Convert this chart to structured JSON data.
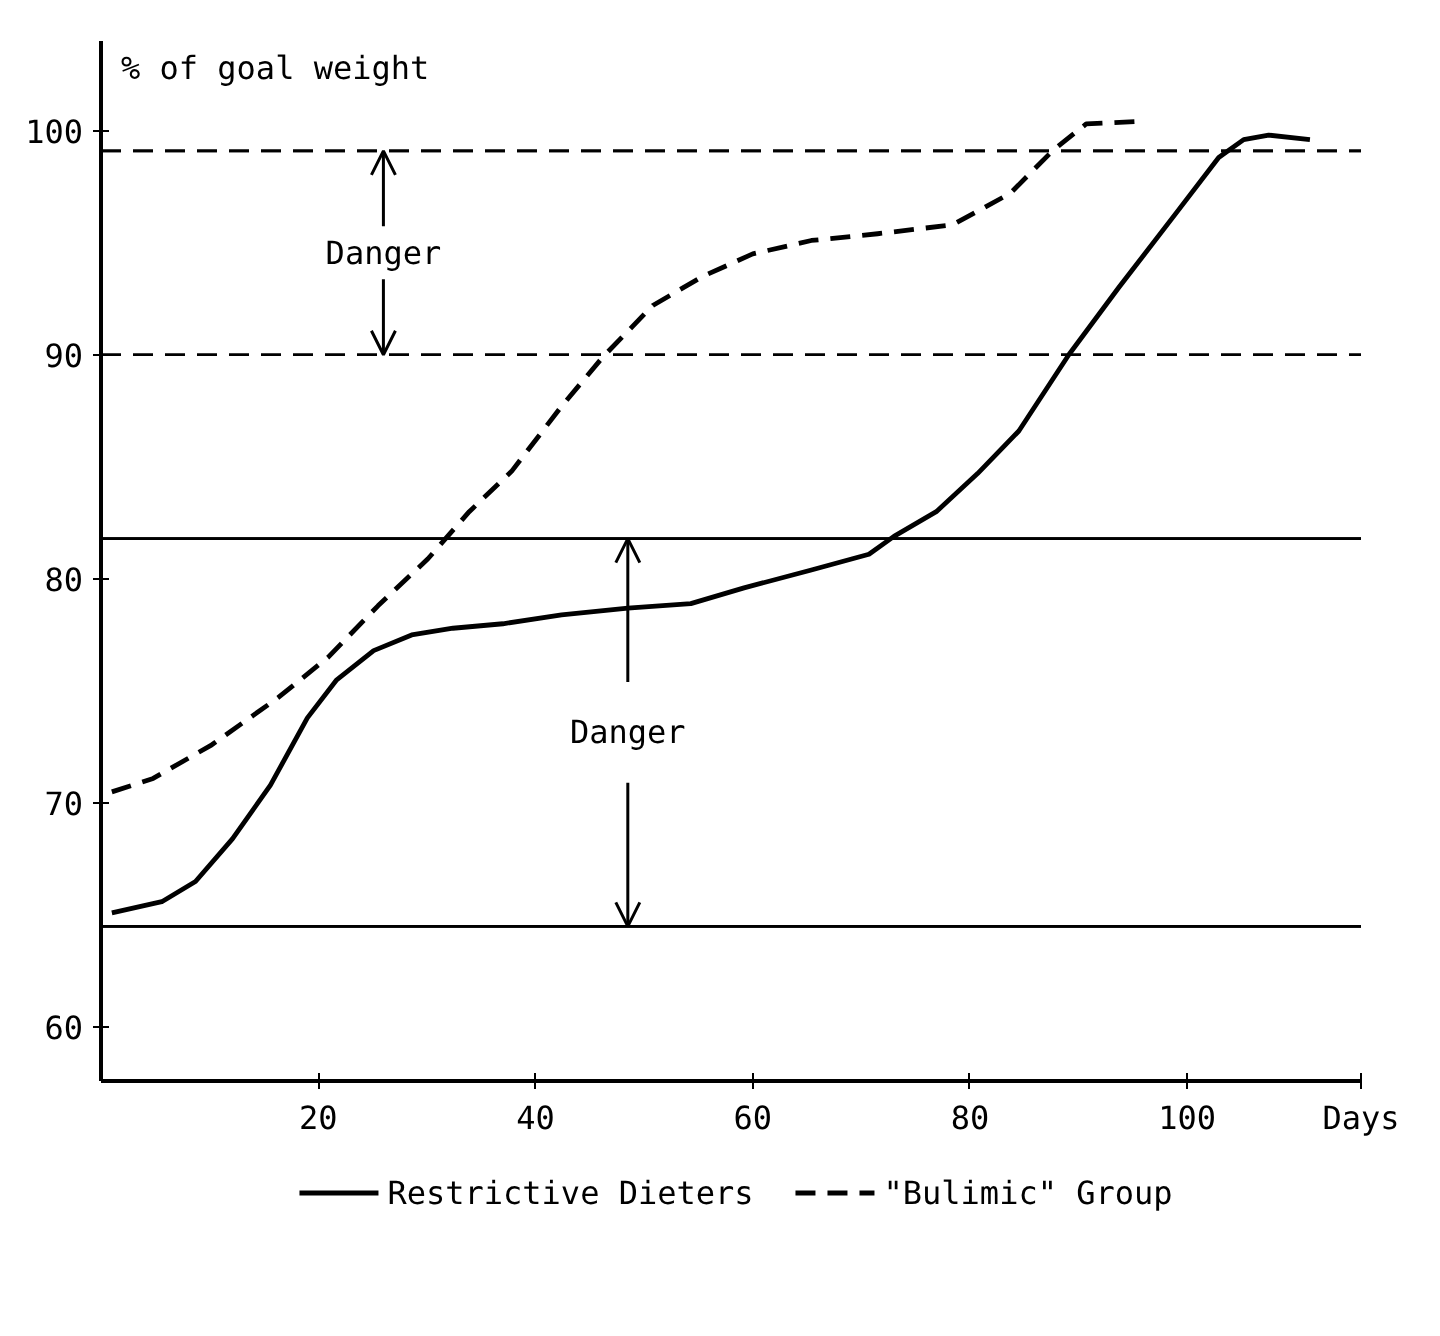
{
  "chart_data": {
    "type": "line",
    "xlabel": "Days",
    "ylabel": "% of goal weight",
    "xlim": [
      0,
      116
    ],
    "ylim": [
      57.6,
      104
    ],
    "xticks": [
      20,
      40,
      60,
      80,
      100
    ],
    "yticks": [
      60,
      70,
      80,
      90,
      100
    ],
    "grid": false,
    "legend": "bottom",
    "marker": "none",
    "series": [
      {
        "name": "Restrictive Dieters",
        "color": "#000000",
        "line_style": "solid",
        "x": [
          1,
          5.6,
          8.7,
          12.1,
          15.6,
          19,
          21.7,
          25.1,
          28.6,
          32.4,
          37,
          42.4,
          48.5,
          54.3,
          59.2,
          65.4,
          70.7,
          73,
          76.9,
          80.7,
          84.5,
          89.1,
          93.7,
          99.1,
          102.9,
          105.2,
          107.5,
          111.3
        ],
        "values": [
          65.1,
          65.6,
          66.5,
          68.4,
          70.8,
          73.8,
          75.5,
          76.8,
          77.5,
          77.8,
          78.0,
          78.4,
          78.7,
          78.9,
          79.6,
          80.4,
          81.1,
          81.9,
          83.0,
          84.7,
          86.6,
          90.0,
          93.0,
          96.4,
          98.8,
          99.6,
          99.8,
          99.6
        ]
      },
      {
        "name": "\"Bulimic\" Group",
        "color": "#000000",
        "line_style": "dashed",
        "x": [
          1,
          4.8,
          10.2,
          16.3,
          20.9,
          25.5,
          30.1,
          33.9,
          37.8,
          42.4,
          46.2,
          50.8,
          55.4,
          60,
          65.4,
          71.5,
          78.4,
          83.7,
          87.6,
          90.7,
          95.2
        ],
        "values": [
          70.5,
          71.1,
          72.6,
          74.7,
          76.5,
          78.8,
          80.9,
          83.0,
          84.8,
          87.7,
          89.9,
          92.2,
          93.5,
          94.5,
          95.1,
          95.4,
          95.8,
          97.2,
          99.1,
          100.3,
          100.4
        ]
      }
    ],
    "ref_lines": [
      {
        "axis": "y",
        "value": 99.1,
        "line_style": "dashed",
        "color": "#000000"
      },
      {
        "axis": "y",
        "value": 90,
        "line_style": "dashed",
        "color": "#000000"
      },
      {
        "axis": "y",
        "value": 81.8,
        "line_style": "solid",
        "color": "#000000"
      },
      {
        "axis": "y",
        "value": 64.5,
        "line_style": "solid",
        "color": "#000000"
      }
    ],
    "annotations": [
      {
        "text": "Danger",
        "x": 26,
        "y": 99.1
      },
      {
        "text": "Danger",
        "x": 48.5,
        "y": 81.8
      }
    ]
  }
}
